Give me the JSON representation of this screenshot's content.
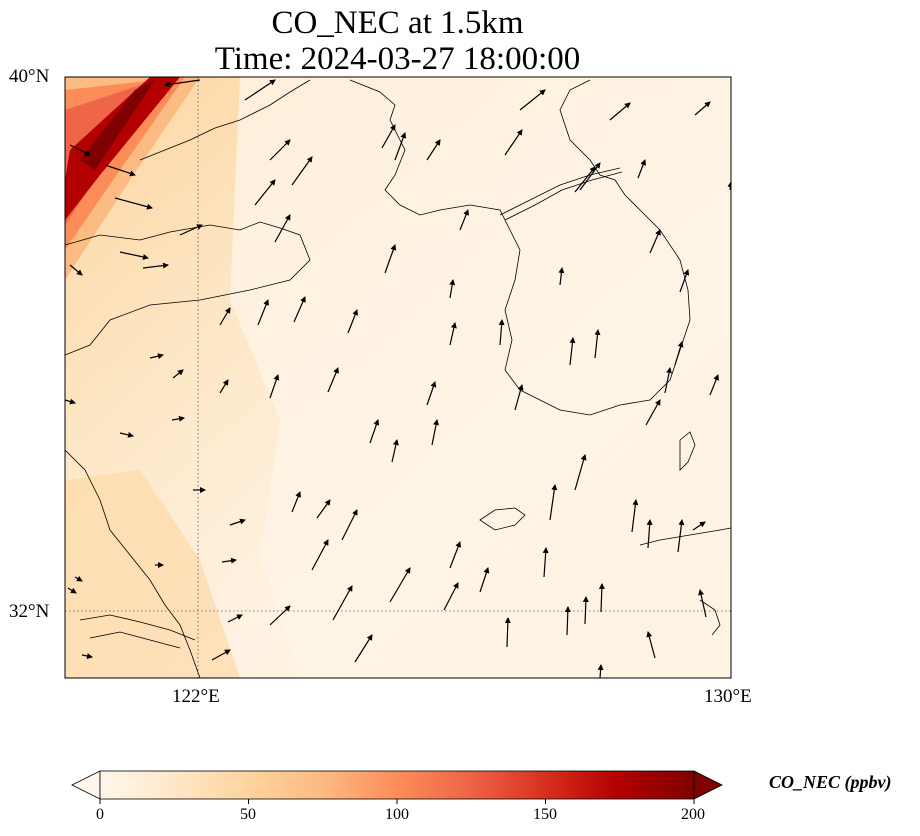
{
  "title": {
    "line1": "CO_NEC at 1.5km",
    "line2": "Time: 2024-03-27 18:00:00"
  },
  "axes": {
    "lat_labels": [
      "40°N",
      "32°N"
    ],
    "lon_labels": [
      "122°E",
      "130°E"
    ],
    "lat_range": [
      31,
      40
    ],
    "lon_range": [
      120,
      130
    ]
  },
  "colorbar": {
    "label": "CO_NEC (ppbv)",
    "ticks": [
      "0",
      "50",
      "100",
      "150",
      "200"
    ],
    "range": [
      0,
      200
    ],
    "colormap": "OrRd",
    "extend": "both",
    "colors": [
      "#fff7ec",
      "#fee8c8",
      "#fdd49e",
      "#fdbb84",
      "#fc8d59",
      "#ef6548",
      "#d7301f",
      "#b30000",
      "#7f0000"
    ]
  },
  "gridlines": {
    "lines": [
      "122°E",
      "32°N"
    ],
    "style": "dotted"
  },
  "wind_vectors": {
    "color": "#000000"
  }
}
